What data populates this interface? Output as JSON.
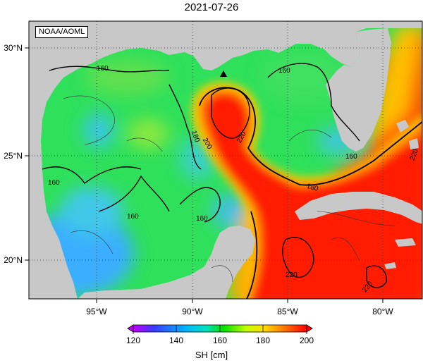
{
  "title": "2021-07-26",
  "credit": "NOAA/AOML",
  "x_ticks": [
    "95°W",
    "90°W",
    "85°W",
    "80°W"
  ],
  "y_ticks": [
    "30°N",
    "25°N",
    "20°N"
  ],
  "colorbar": {
    "label": "SH [cm]",
    "ticks": [
      "120",
      "140",
      "160",
      "180",
      "200"
    ],
    "range": [
      120,
      200
    ],
    "stops": [
      "#c000ff",
      "#3a3aff",
      "#00b4ff",
      "#00e0c0",
      "#00e000",
      "#c0ff00",
      "#ffe000",
      "#ff8000",
      "#ff0000"
    ]
  },
  "contour_labels": [
    "160",
    "160",
    "160",
    "160",
    "160",
    "180",
    "200",
    "220",
    "180",
    "220",
    "220",
    "220",
    "160"
  ],
  "colors": {
    "land": "#c8c8c8",
    "gulf_green": "#2ee05a",
    "loop_current_red": "#ff1e00",
    "west_blue": "#3fa6ff",
    "frame": "#000000",
    "grid": "#333333"
  },
  "icons": [
    "buoy-triangle-icon"
  ]
}
